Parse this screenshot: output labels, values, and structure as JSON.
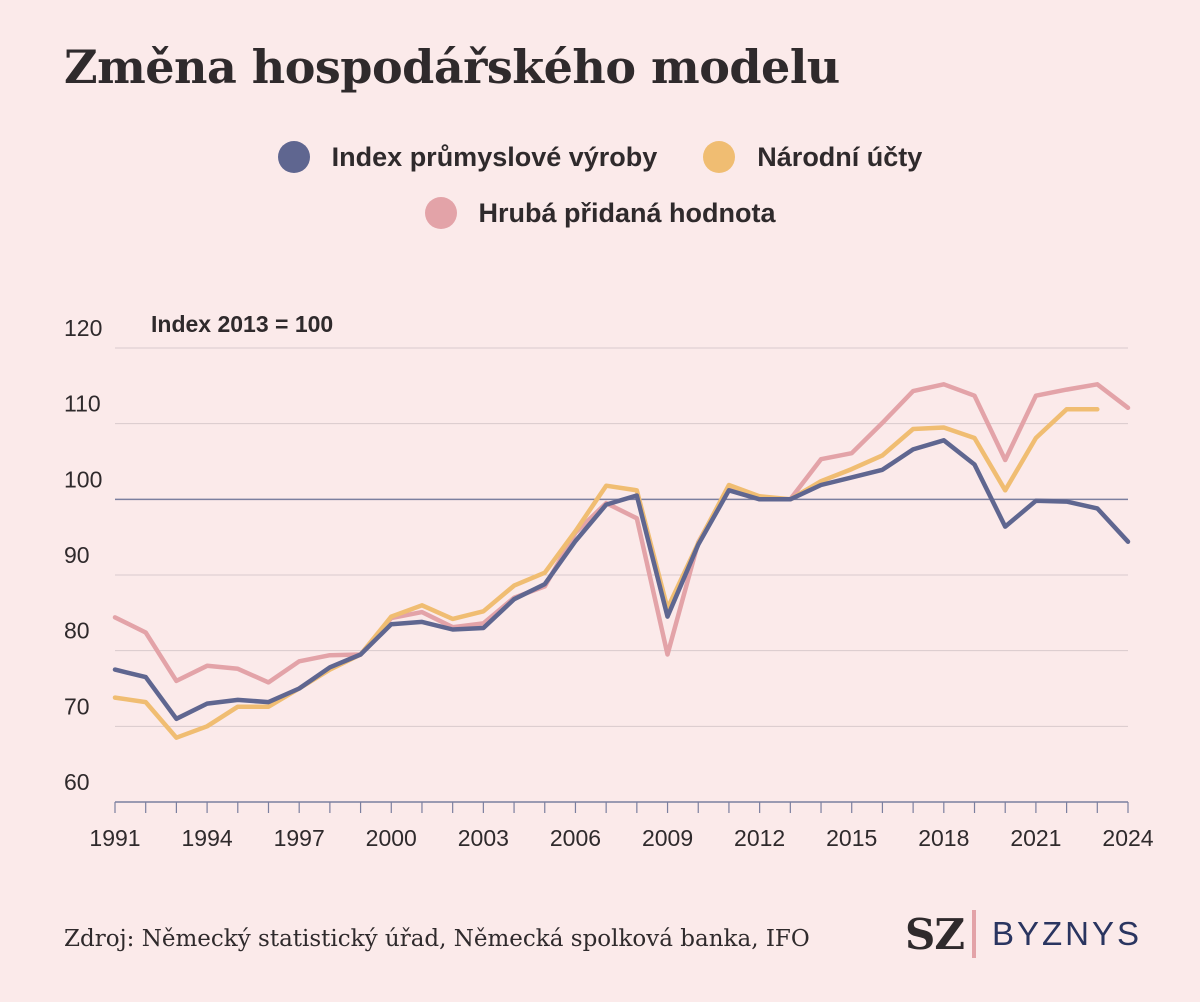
{
  "title": "Změna hospodářského modelu",
  "source": "Zdroj: Německý statistický úřad, Německá spolková banka, IFO",
  "logo": {
    "sz": "SZ",
    "byznys": "BYZNYS"
  },
  "colors": {
    "background": "#fbeaea",
    "industrial": "#5f6690",
    "national": "#f0bd72",
    "gva": "#e3a3a8",
    "grid": "#d9cacd",
    "baseline": "#7b7f9f",
    "text": "#2f2a2c"
  },
  "chart_data": {
    "type": "line",
    "annotation": "Index 2013 = 100",
    "ylim": [
      60,
      120
    ],
    "yticks": [
      60,
      70,
      80,
      90,
      100,
      110,
      120
    ],
    "xlim": [
      1991,
      2024
    ],
    "xticks": [
      1991,
      1994,
      1997,
      2000,
      2003,
      2006,
      2009,
      2012,
      2015,
      2018,
      2021,
      2024
    ],
    "reference_line": 100,
    "legend_position": "top-center",
    "series": [
      {
        "name": "Index průmyslové výroby",
        "color": "#5f6690",
        "x": [
          1991,
          1992,
          1993,
          1994,
          1995,
          1996,
          1997,
          1998,
          1999,
          2000,
          2001,
          2002,
          2003,
          2004,
          2005,
          2006,
          2007,
          2008,
          2009,
          2010,
          2011,
          2012,
          2013,
          2014,
          2015,
          2016,
          2017,
          2018,
          2019,
          2020,
          2021,
          2022,
          2023,
          2024
        ],
        "values": [
          77.5,
          76.5,
          71,
          73,
          73.5,
          73.2,
          75,
          77.8,
          79.5,
          83.5,
          83.8,
          82.8,
          83,
          86.8,
          88.8,
          94.5,
          99.3,
          100.5,
          84.5,
          94,
          101.2,
          100,
          100,
          101.9,
          102.9,
          103.9,
          106.6,
          107.8,
          104.6,
          96.4,
          99.8,
          99.7,
          98.8,
          94.4
        ]
      },
      {
        "name": "Národní účty",
        "color": "#f0bd72",
        "x": [
          1991,
          1992,
          1993,
          1994,
          1995,
          1996,
          1997,
          1998,
          1999,
          2000,
          2001,
          2002,
          2003,
          2004,
          2005,
          2006,
          2007,
          2008,
          2009,
          2010,
          2011,
          2012,
          2013,
          2014,
          2015,
          2016,
          2017,
          2018,
          2019,
          2020,
          2021,
          2022,
          2023
        ],
        "values": [
          73.8,
          73.2,
          68.5,
          70,
          72.6,
          72.6,
          75,
          77.5,
          79.5,
          84.5,
          86,
          84.2,
          85.2,
          88.6,
          90.3,
          95.8,
          101.8,
          101.2,
          85.6,
          94.2,
          101.9,
          100.4,
          100,
          102.4,
          104,
          105.8,
          109.3,
          109.5,
          108.1,
          101.2,
          108.1,
          111.9,
          111.9
        ]
      },
      {
        "name": "Hrubá přidaná hodnota",
        "color": "#e3a3a8",
        "x": [
          1991,
          1992,
          1993,
          1994,
          1995,
          1996,
          1997,
          1998,
          1999,
          2000,
          2001,
          2002,
          2003,
          2004,
          2005,
          2006,
          2007,
          2008,
          2009,
          2010,
          2011,
          2012,
          2013,
          2014,
          2015,
          2016,
          2017,
          2018,
          2019,
          2020,
          2021,
          2022,
          2023,
          2024
        ],
        "values": [
          84.4,
          82.4,
          76,
          78,
          77.6,
          75.8,
          78.6,
          79.4,
          79.5,
          84.3,
          85.1,
          83.1,
          83.6,
          87,
          88.5,
          95.6,
          99.5,
          97.5,
          79.5,
          94.3,
          101.6,
          100,
          100,
          105.3,
          106.1,
          110.1,
          114.3,
          115.2,
          113.7,
          105.2,
          113.7,
          114.5,
          115.2,
          112.1
        ]
      }
    ]
  }
}
